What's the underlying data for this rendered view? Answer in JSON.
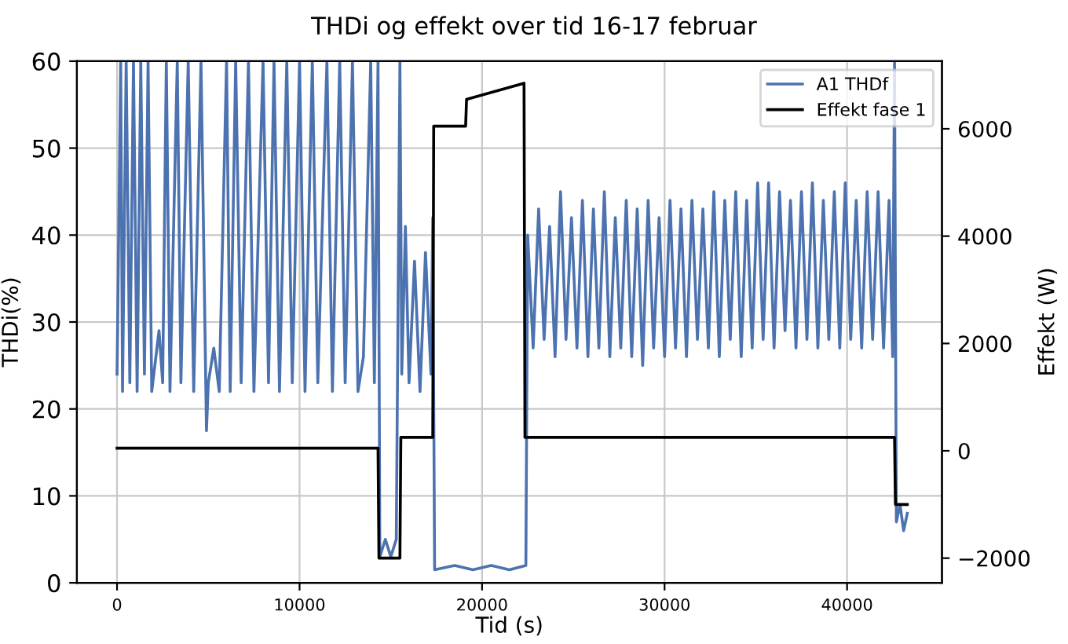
{
  "chart_data": {
    "type": "line",
    "title": "THDi og effekt over tid 16-17 februar",
    "xlabel": "Tid (s)",
    "ylabel": "THDi(%)",
    "y2label": "Effekt (W)",
    "xlim": [
      -2200,
      45200
    ],
    "xticks": [
      0,
      10000,
      20000,
      30000,
      40000
    ],
    "ylim": [
      0,
      60
    ],
    "yticks": [
      0,
      10,
      20,
      30,
      40,
      50,
      60
    ],
    "y2lim": [
      -2460,
      7260
    ],
    "y2ticks": [
      -2000,
      0,
      2000,
      4000,
      6000
    ],
    "grid": true,
    "legend": "top right",
    "series": [
      {
        "name": "A1 THDf",
        "color": "#4c72b0",
        "x": [
          0,
          200,
          300,
          500,
          700,
          900,
          1100,
          1300,
          1500,
          1700,
          1900,
          2300,
          2500,
          2700,
          2900,
          3300,
          3500,
          3900,
          4200,
          4600,
          4900,
          5000,
          5300,
          5600,
          6000,
          6200,
          6500,
          6800,
          7200,
          7500,
          8000,
          8300,
          8600,
          8900,
          9300,
          9600,
          10000,
          10300,
          10700,
          11000,
          11500,
          11800,
          12200,
          12500,
          12900,
          13200,
          13500,
          13900,
          14100,
          14300,
          14400,
          14700,
          15000,
          15300,
          15500,
          15600,
          15800,
          16000,
          16300,
          16600,
          16900,
          17200,
          17300,
          17400,
          18500,
          19500,
          20500,
          21500,
          22400,
          22500,
          22800,
          23100,
          23400,
          23700,
          24000,
          24300,
          24600,
          24900,
          25200,
          25500,
          25800,
          26100,
          26400,
          26700,
          27000,
          27300,
          27600,
          27900,
          28200,
          28500,
          28800,
          29100,
          29400,
          29700,
          30000,
          30300,
          30600,
          30900,
          31200,
          31500,
          31800,
          32100,
          32400,
          32700,
          33000,
          33300,
          33600,
          33900,
          34200,
          34500,
          34800,
          35100,
          35400,
          35700,
          36000,
          36300,
          36600,
          36900,
          37200,
          37500,
          37800,
          38100,
          38400,
          38700,
          39000,
          39300,
          39600,
          39900,
          40200,
          40500,
          40800,
          41100,
          41400,
          41700,
          42000,
          42300,
          42500,
          42600,
          42700,
          42900,
          43100,
          43300
        ],
        "values": [
          24,
          60,
          22,
          60,
          23,
          60,
          22,
          60,
          24,
          60,
          22,
          29,
          23,
          60,
          22,
          60,
          23,
          60,
          22,
          60,
          17.5,
          23,
          27,
          22,
          60,
          22,
          60,
          23,
          60,
          22,
          60,
          23,
          60,
          22,
          60,
          23,
          60,
          22,
          60,
          23,
          60,
          22,
          60,
          23,
          60,
          22,
          26,
          60,
          23,
          60,
          3,
          5,
          3,
          5,
          60,
          24,
          41,
          23,
          37,
          22,
          38,
          24,
          42,
          1.5,
          2,
          1.5,
          2,
          1.5,
          2,
          40,
          27,
          43,
          28,
          41,
          26,
          45,
          28,
          42,
          27,
          44,
          26,
          43,
          27,
          45,
          26,
          42,
          27,
          44,
          26,
          43,
          25,
          44,
          27,
          42,
          26,
          44,
          27,
          43,
          26,
          44,
          28,
          43,
          27,
          45,
          26,
          44,
          28,
          45,
          26,
          44,
          27,
          46,
          28,
          46,
          27,
          45,
          29,
          44,
          27,
          45,
          28,
          46,
          27,
          44,
          28,
          45,
          27,
          46,
          28,
          44,
          27,
          45,
          28,
          45,
          27,
          44,
          26,
          60,
          7,
          9,
          6,
          8
        ]
      },
      {
        "name": "Effekt fase 1",
        "color": "#000000",
        "axis": "y2",
        "x": [
          0,
          14300,
          14350,
          15500,
          15550,
          17300,
          17350,
          19100,
          19150,
          22300,
          22350,
          42600,
          42650,
          43300
        ],
        "values": [
          50,
          50,
          -2000,
          -2000,
          250,
          250,
          6050,
          6050,
          6550,
          6850,
          250,
          250,
          -1000,
          -1000
        ]
      }
    ]
  }
}
